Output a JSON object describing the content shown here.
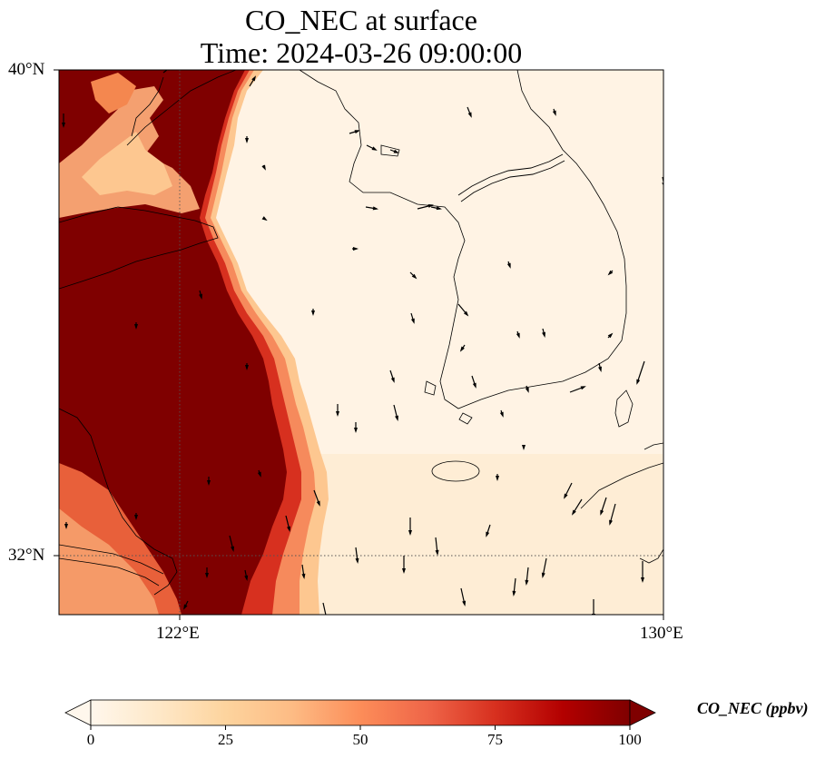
{
  "title": {
    "line1": "CO_NEC at surface",
    "line2": "Time: 2024-03-26 09:00:00"
  },
  "axes": {
    "lat_ticks": [
      "40°N",
      "32°N"
    ],
    "lon_ticks": [
      "122°E",
      "130°E"
    ]
  },
  "colorbar": {
    "label": "CO_NEC (ppbv)",
    "ticks": [
      "0",
      "25",
      "50",
      "75",
      "100"
    ],
    "range": [
      0,
      100
    ],
    "extend": "both",
    "colormap": "OrRd",
    "colors": [
      "#fff7ec",
      "#fee8c8",
      "#fdd49e",
      "#fdbb84",
      "#fc8d59",
      "#ef6548",
      "#d7301f",
      "#b30000",
      "#7f0000"
    ]
  },
  "map": {
    "extent_lon": [
      120,
      130
    ],
    "extent_lat": [
      31,
      40
    ],
    "gridlines_lon": [
      122
    ],
    "gridlines_lat": [
      32
    ],
    "features": [
      "coastline",
      "country borders",
      "wind vectors"
    ]
  }
}
